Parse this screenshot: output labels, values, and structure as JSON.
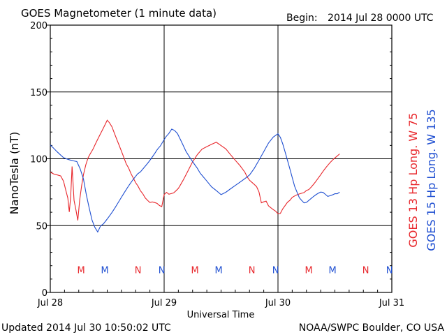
{
  "title": "GOES Magnetometer (1 minute data)",
  "begin_label": "Begin:",
  "begin_value": "2014 Jul 28 0000 UTC",
  "updated_label": "Updated 2014 Jul 30 10:50:02 UTC",
  "credit": "NOAA/SWPC Boulder, CO USA",
  "chart_data": {
    "type": "line",
    "title": "GOES Magnetometer (1 minute data)",
    "xlabel": "Universal Time",
    "ylabel": "NanoTesla (nT)",
    "xlim": [
      0,
      72
    ],
    "x_unit": "hours since 2014 Jul 28 0000 UTC",
    "ylim": [
      0,
      200
    ],
    "y_ticks": [
      0,
      50,
      100,
      150,
      200
    ],
    "x_tick_labels": [
      "Jul 28",
      "Jul 29",
      "Jul 30",
      "Jul 31"
    ],
    "x_tick_hours": [
      0,
      24,
      48,
      72
    ],
    "grid": true,
    "series": [
      {
        "name": "GOES 13 Hp Long. W 75",
        "color": "#e8262b",
        "x": [
          0,
          0.8,
          1.5,
          2.2,
          2.8,
          3.3,
          3.7,
          4.0,
          4.3,
          4.6,
          5.0,
          5.4,
          5.8,
          6.2,
          6.6,
          7.0,
          7.5,
          8.0,
          8.5,
          9.0,
          9.5,
          10.0,
          10.5,
          11.0,
          11.5,
          12.0,
          12.5,
          13.0,
          13.5,
          14.0,
          14.5,
          15.0,
          15.5,
          16.0,
          16.5,
          17.0,
          17.5,
          18.0,
          18.5,
          19.0,
          19.5,
          20.0,
          20.5,
          21.0,
          21.5,
          22.0,
          22.5,
          23.0,
          23.5,
          24.0,
          24.5,
          25.0,
          25.5,
          26.0,
          26.5,
          27.0,
          27.5,
          28.0,
          28.5,
          29.0,
          29.5,
          30.0,
          31.0,
          32.0,
          33.0,
          34.0,
          35.0,
          36.0,
          37.0,
          38.0,
          39.0,
          40.0,
          41.0,
          41.5,
          42.0,
          42.5,
          43.0,
          43.5,
          44.0,
          44.5,
          45.0,
          45.5,
          46.0,
          46.5,
          47.0,
          47.5,
          48.0,
          48.5,
          49.0,
          49.5,
          50.0,
          50.5,
          51.0,
          51.5,
          52.0,
          52.5,
          53.0,
          53.5,
          54.0,
          54.5,
          55.0,
          55.5,
          56.0,
          56.5,
          57.0,
          57.5,
          58.0,
          58.5,
          59.0,
          59.5,
          60.0,
          60.5,
          61.0
        ],
        "y": [
          90,
          88,
          87,
          86,
          82,
          75,
          70,
          60,
          72,
          95,
          70,
          63,
          55,
          70,
          80,
          88,
          95,
          100,
          103,
          106,
          110,
          114,
          118,
          122,
          126,
          130,
          128,
          125,
          120,
          115,
          110,
          105,
          100,
          95,
          92,
          88,
          85,
          82,
          80,
          77,
          75,
          72,
          70,
          68,
          68,
          67,
          66,
          64,
          63,
          72,
          74,
          73,
          74,
          75,
          77,
          79,
          82,
          85,
          88,
          91,
          94,
          97,
          102,
          106,
          108,
          110,
          112,
          110,
          108,
          104,
          100,
          96,
          91,
          87,
          84,
          82,
          80,
          78,
          74,
          66,
          67,
          68,
          65,
          64,
          63,
          62,
          60,
          60,
          63,
          65,
          67,
          68,
          70,
          71,
          72,
          73,
          74,
          75,
          77,
          78,
          80,
          82,
          84,
          86,
          88,
          90,
          92,
          94,
          96,
          98,
          100,
          102,
          104
        ]
      },
      {
        "name": "GOES 15 Hp Long. W 135",
        "color": "#1f4fd1",
        "x": [
          0,
          0.7,
          1.4,
          2.1,
          2.8,
          3.5,
          4.2,
          4.9,
          5.6,
          6.3,
          7.0,
          7.6,
          8.2,
          8.8,
          9.4,
          10.0,
          10.6,
          11.2,
          11.8,
          12.4,
          13.0,
          13.6,
          14.2,
          14.8,
          15.4,
          16.0,
          16.6,
          17.2,
          17.8,
          18.4,
          19.0,
          19.6,
          20.2,
          20.8,
          21.4,
          22.0,
          22.6,
          23.2,
          23.8,
          24.4,
          25.0,
          25.6,
          26.2,
          26.8,
          27.4,
          28.0,
          28.6,
          29.2,
          29.8,
          30.4,
          31.0,
          31.6,
          32.2,
          32.8,
          33.4,
          34.0,
          35.0,
          36.0,
          37.0,
          38.0,
          39.0,
          40.0,
          41.0,
          42.0,
          43.0,
          44.0,
          45.0,
          46.0,
          47.0,
          48.0,
          48.5,
          49.0,
          49.5,
          50.0,
          50.5,
          51.0,
          51.5,
          52.0,
          52.5,
          53.0,
          53.5,
          54.0,
          54.5,
          55.0,
          55.5,
          56.0,
          56.5,
          57.0,
          57.5,
          58.0,
          58.5,
          59.0,
          59.5,
          60.0,
          60.5,
          61.0
        ],
        "y": [
          110,
          108,
          106,
          104,
          102,
          101,
          100,
          99,
          98,
          92,
          84,
          72,
          62,
          53,
          48,
          45,
          50,
          52,
          55,
          58,
          61,
          64,
          67,
          70,
          73,
          76,
          79,
          82,
          85,
          88,
          90,
          93,
          96,
          99,
          102,
          105,
          108,
          110,
          113,
          116,
          118,
          121,
          120,
          118,
          114,
          110,
          106,
          103,
          100,
          97,
          94,
          90,
          87,
          84,
          81,
          78,
          75,
          72,
          74,
          77,
          80,
          83,
          86,
          89,
          94,
          100,
          106,
          112,
          116,
          118,
          115,
          110,
          104,
          98,
          92,
          86,
          80,
          76,
          72,
          70,
          68,
          68,
          69,
          70,
          71,
          72,
          73,
          74,
          74,
          73,
          72,
          73,
          74,
          75,
          75,
          76
        ]
      }
    ],
    "markers": [
      {
        "letter": "M",
        "series": "GOES 13 Hp Long. W 75",
        "hour": 6.5
      },
      {
        "letter": "M",
        "series": "GOES 15 Hp Long. W 135",
        "hour": 11.5
      },
      {
        "letter": "N",
        "series": "GOES 13 Hp Long. W 75",
        "hour": 18.5
      },
      {
        "letter": "N",
        "series": "GOES 15 Hp Long. W 135",
        "hour": 23.5
      },
      {
        "letter": "M",
        "series": "GOES 13 Hp Long. W 75",
        "hour": 30.5
      },
      {
        "letter": "M",
        "series": "GOES 15 Hp Long. W 135",
        "hour": 35.5
      },
      {
        "letter": "N",
        "series": "GOES 13 Hp Long. W 75",
        "hour": 42.5
      },
      {
        "letter": "N",
        "series": "GOES 15 Hp Long. W 135",
        "hour": 47.5
      },
      {
        "letter": "M",
        "series": "GOES 13 Hp Long. W 75",
        "hour": 54.5
      },
      {
        "letter": "M",
        "series": "GOES 15 Hp Long. W 135",
        "hour": 59.5
      },
      {
        "letter": "N",
        "series": "GOES 13 Hp Long. W 75",
        "hour": 66.5
      },
      {
        "letter": "N",
        "series": "GOES 15 Hp Long. W 135",
        "hour": 71.5
      }
    ],
    "marker_level": 17
  }
}
